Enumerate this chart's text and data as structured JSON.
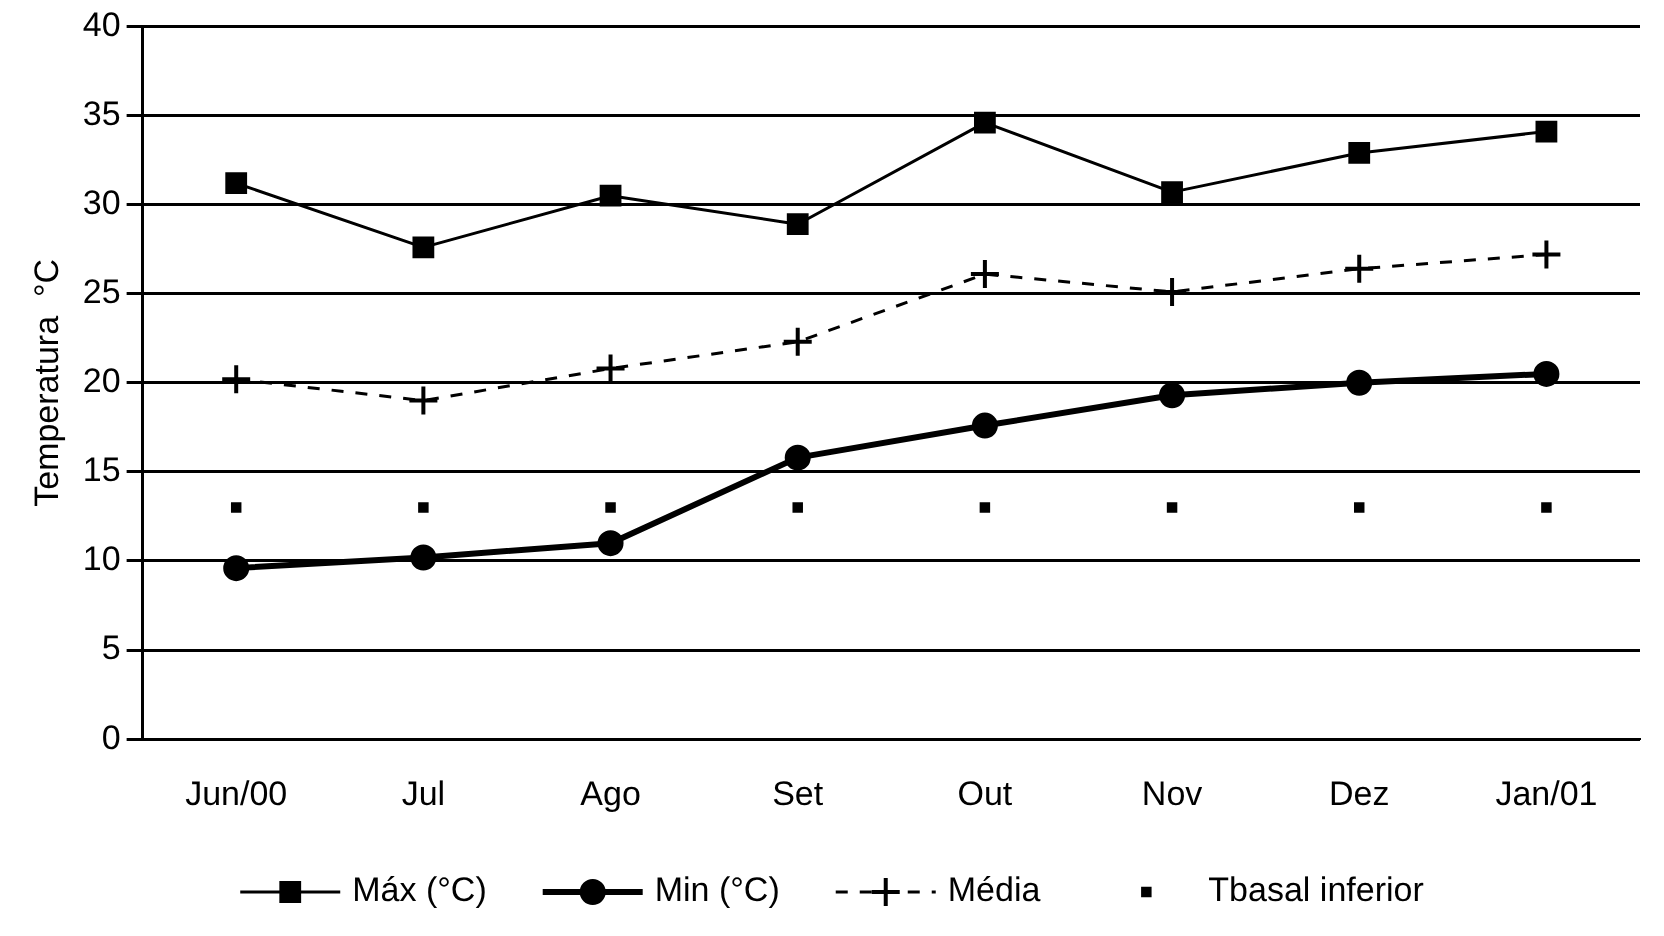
{
  "chart_data": {
    "type": "line",
    "ylabel": "Temperatura  °C",
    "categories": [
      "Jun/00",
      "Jul",
      "Ago",
      "Set",
      "Out",
      "Nov",
      "Dez",
      "Jan/01"
    ],
    "series": [
      {
        "name": "Máx (°C)",
        "color": "#000000",
        "marker": "square",
        "line_style": "solid",
        "values": [
          31.2,
          27.6,
          30.5,
          28.9,
          34.6,
          30.7,
          32.9,
          34.1
        ]
      },
      {
        "name": "Min (°C)",
        "color": "#000000",
        "marker": "circle",
        "line_style": "solid",
        "values": [
          9.6,
          10.2,
          11.0,
          15.8,
          17.6,
          19.3,
          20.0,
          20.5
        ]
      },
      {
        "name": "Média",
        "color": "#000000",
        "marker": "cross",
        "line_style": "dashed",
        "values": [
          20.2,
          19.0,
          20.8,
          22.3,
          26.1,
          25.1,
          26.4,
          27.2
        ]
      },
      {
        "name": "Tbasal inferior",
        "type": "scatter",
        "color": "#000000",
        "marker": "square",
        "values": [
          13,
          13,
          13,
          13,
          13,
          13,
          13,
          13
        ]
      }
    ],
    "ylim": [
      0,
      40
    ],
    "yticks": [
      0,
      5,
      10,
      15,
      20,
      25,
      30,
      35,
      40
    ],
    "grid": "y",
    "legend": "bottom"
  }
}
